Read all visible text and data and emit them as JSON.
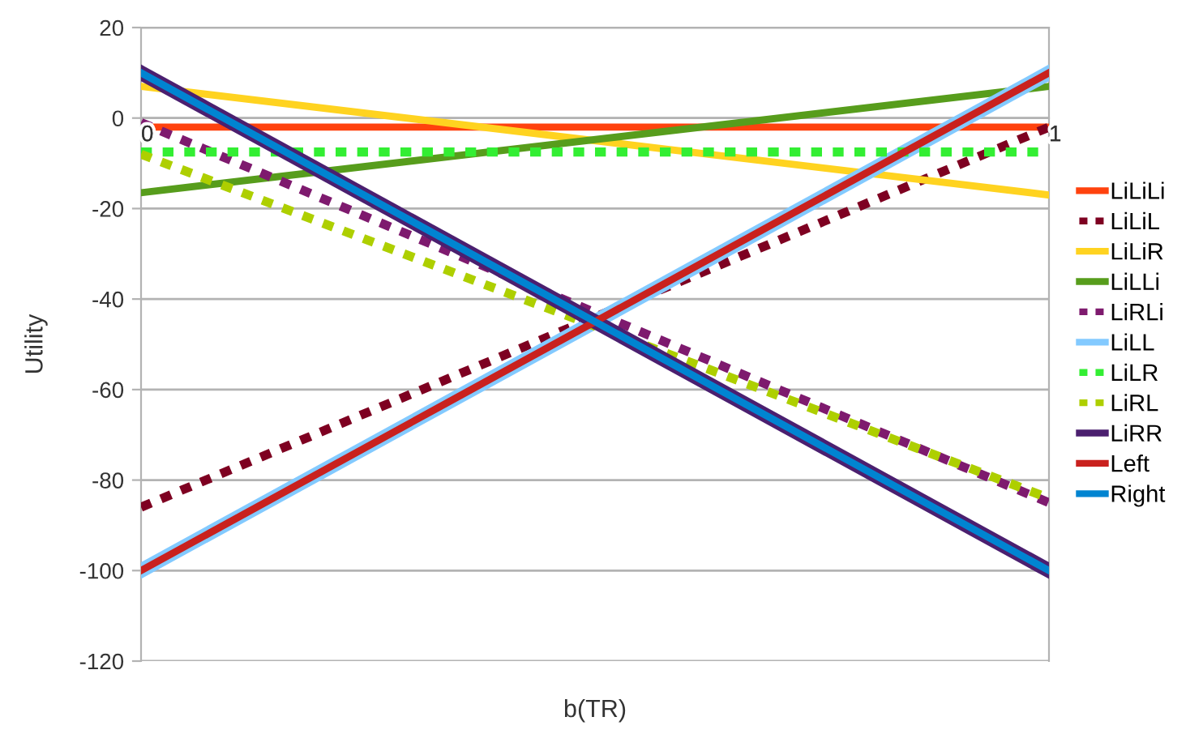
{
  "chart_data": {
    "type": "line",
    "xlabel": "b(TR)",
    "ylabel": "Utility",
    "x": [
      0,
      1
    ],
    "xlim": [
      0,
      1
    ],
    "xticks": [
      0,
      1
    ],
    "ylim": [
      -120,
      20
    ],
    "yticks": [
      -120,
      -100,
      -80,
      -60,
      -40,
      -20,
      0,
      20
    ],
    "grid": "y",
    "legend": "right",
    "marker": "none",
    "series": [
      {
        "name": "LiLiLi",
        "color": "#ff420e",
        "values": [
          -2,
          -2
        ],
        "line_style": "solid"
      },
      {
        "name": "LiLiL",
        "color": "#7e0021",
        "values": [
          -86,
          -2
        ],
        "line_style": "dotted"
      },
      {
        "name": "LiLiR",
        "color": "#ffd320",
        "values": [
          7,
          -17
        ],
        "line_style": "solid"
      },
      {
        "name": "LiLLi",
        "color": "#579d1c",
        "values": [
          -16.5,
          7
        ],
        "line_style": "solid"
      },
      {
        "name": "LiRLi",
        "color": "#7e1a6e",
        "values": [
          -1,
          -85
        ],
        "line_style": "dotted"
      },
      {
        "name": "LiLL",
        "color": "#83caff",
        "values": [
          -100,
          10
        ],
        "line_style": "solid"
      },
      {
        "name": "LiLR",
        "color": "#33ee33",
        "values": [
          -7.5,
          -7.5
        ],
        "line_style": "dotted"
      },
      {
        "name": "LiRL",
        "color": "#aecf00",
        "values": [
          -8,
          -84
        ],
        "line_style": "dotted"
      },
      {
        "name": "LiRR",
        "color": "#4b1f6f",
        "values": [
          10,
          -100
        ],
        "line_style": "solid"
      },
      {
        "name": "Left",
        "color": "#c9211e",
        "values": [
          -100,
          10
        ],
        "line_style": "solid"
      },
      {
        "name": "Right",
        "color": "#0084d1",
        "values": [
          10,
          -100
        ],
        "line_style": "solid"
      }
    ]
  }
}
